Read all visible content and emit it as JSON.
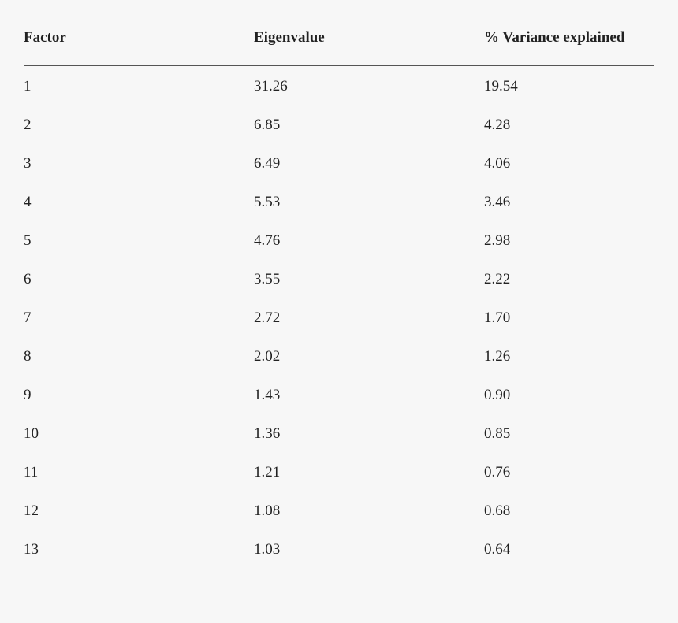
{
  "table": {
    "header": [
      "Factor",
      "Eigenvalue",
      "% Variance explained"
    ],
    "rows": [
      [
        "1",
        "31.26",
        "19.54"
      ],
      [
        "2",
        "6.85",
        "4.28"
      ],
      [
        "3",
        "6.49",
        "4.06"
      ],
      [
        "4",
        "5.53",
        "3.46"
      ],
      [
        "5",
        "4.76",
        "2.98"
      ],
      [
        "6",
        "3.55",
        "2.22"
      ],
      [
        "7",
        "2.72",
        "1.70"
      ],
      [
        "8",
        "2.02",
        "1.26"
      ],
      [
        "9",
        "1.43",
        "0.90"
      ],
      [
        "10",
        "1.36",
        "0.85"
      ],
      [
        "11",
        "1.21",
        "0.76"
      ],
      [
        "12",
        "1.08",
        "0.68"
      ],
      [
        "13",
        "1.03",
        "0.64"
      ]
    ]
  }
}
